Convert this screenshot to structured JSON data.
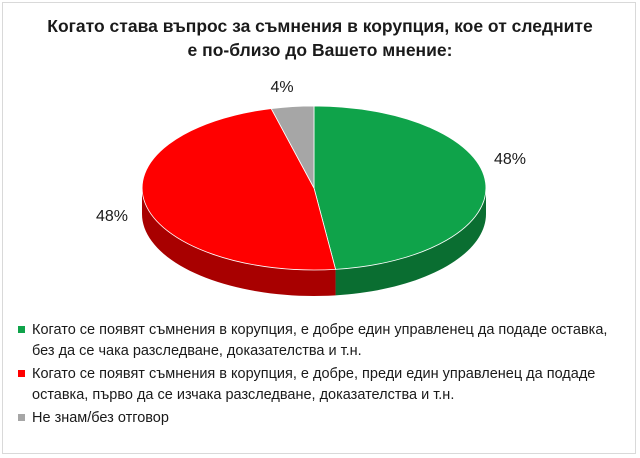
{
  "chart_data": {
    "type": "pie",
    "title_line1": "Когато става въпрос за съмнения в корупция, кое от следните",
    "title_line2": "е по-близо до Вашето мнение:",
    "slices": [
      {
        "label": "Когато се появят съмнения в корупция, е добре един управленец да подаде оставка, без да се чака разследване, доказателства и т.н.",
        "value": 48,
        "display": "48%",
        "color": "#0fa34a",
        "side_color": "#0a6e31"
      },
      {
        "label": "Когато се появят съмнения в корупция, е добре, преди един управленец да подаде оставка, първо да се изчака разследване, доказателства и т.н.",
        "value": 48,
        "display": "48%",
        "color": "#ff0000",
        "side_color": "#a80000"
      },
      {
        "label": "Не знам/без отговор",
        "value": 4,
        "display": "4%",
        "color": "#a6a6a6",
        "side_color": "#6e6e6e"
      }
    ],
    "legend_position": "bottom",
    "style": "3d"
  }
}
